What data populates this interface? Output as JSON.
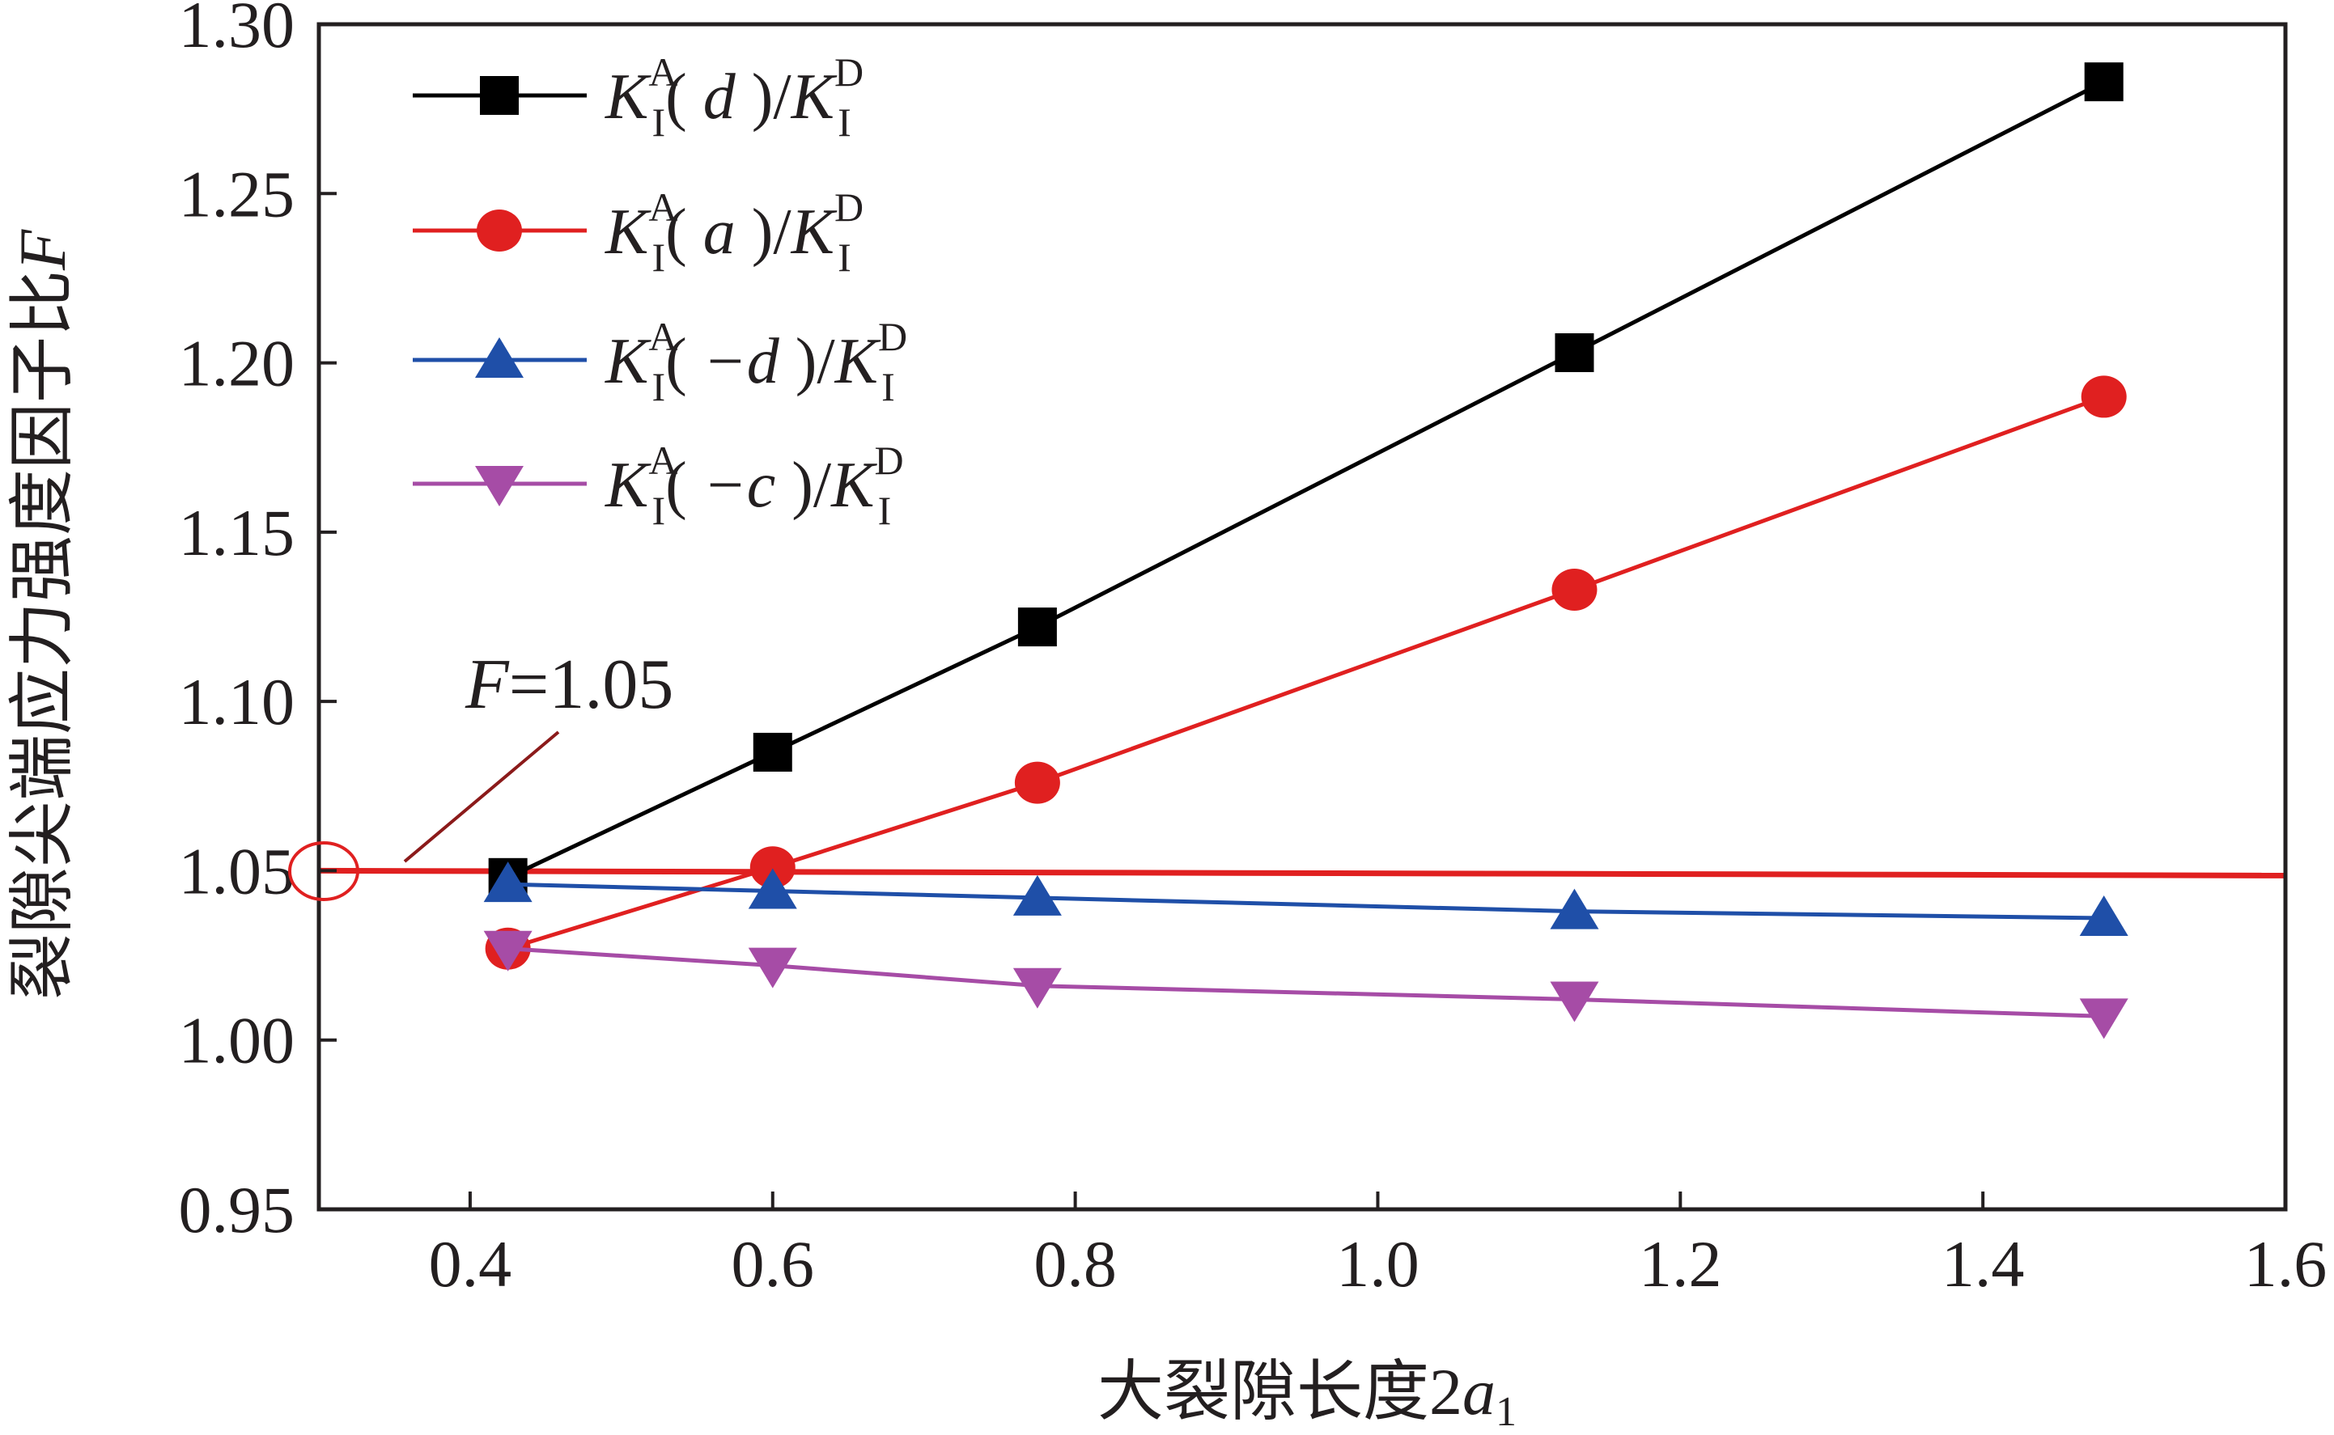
{
  "chart_data": {
    "type": "line",
    "title": "",
    "xlabel_prefix": "大裂隙长度2",
    "xlabel_var": "a",
    "xlabel_sub": "1",
    "ylabel_prefix": "裂隙尖端应力强度因子比",
    "ylabel_var": "F",
    "xlim": [
      0.3,
      1.6
    ],
    "ylim": [
      0.95,
      1.3
    ],
    "xticks": [
      "0.4",
      "0.6",
      "0.8",
      "1.0",
      "1.2",
      "1.4",
      "1.6"
    ],
    "yticks": [
      "0.95",
      "1.00",
      "1.05",
      "1.10",
      "1.15",
      "1.20",
      "1.25",
      "1.30"
    ],
    "x": [
      0.425,
      0.6,
      0.775,
      1.13,
      1.48
    ],
    "series": [
      {
        "name": "K_I^A(d)/K_I^D",
        "arg": "d",
        "marker": "square",
        "color": "#000000",
        "values": [
          1.048,
          1.085,
          1.122,
          1.203,
          1.283
        ]
      },
      {
        "name": "K_I^A(a)/K_I^D",
        "arg": "a",
        "marker": "circle",
        "color": "#e02020",
        "values": [
          1.027,
          1.051,
          1.076,
          1.133,
          1.19
        ]
      },
      {
        "name": "K_I^A(−d)/K_I^D",
        "arg": "−d",
        "marker": "triangle-up",
        "color": "#1f4fa8",
        "values": [
          1.046,
          1.044,
          1.042,
          1.038,
          1.036
        ]
      },
      {
        "name": "K_I^A(−c)/K_I^D",
        "arg": "−c",
        "marker": "triangle-down",
        "color": "#a64ca6",
        "values": [
          1.027,
          1.022,
          1.016,
          1.012,
          1.007
        ]
      }
    ],
    "reference_line": {
      "y": 1.05,
      "color": "#e02020"
    },
    "annotation": {
      "var": "F",
      "text": "=1.05",
      "color": "#8b1a1a"
    },
    "legend_position": "top-left",
    "grid": false
  }
}
